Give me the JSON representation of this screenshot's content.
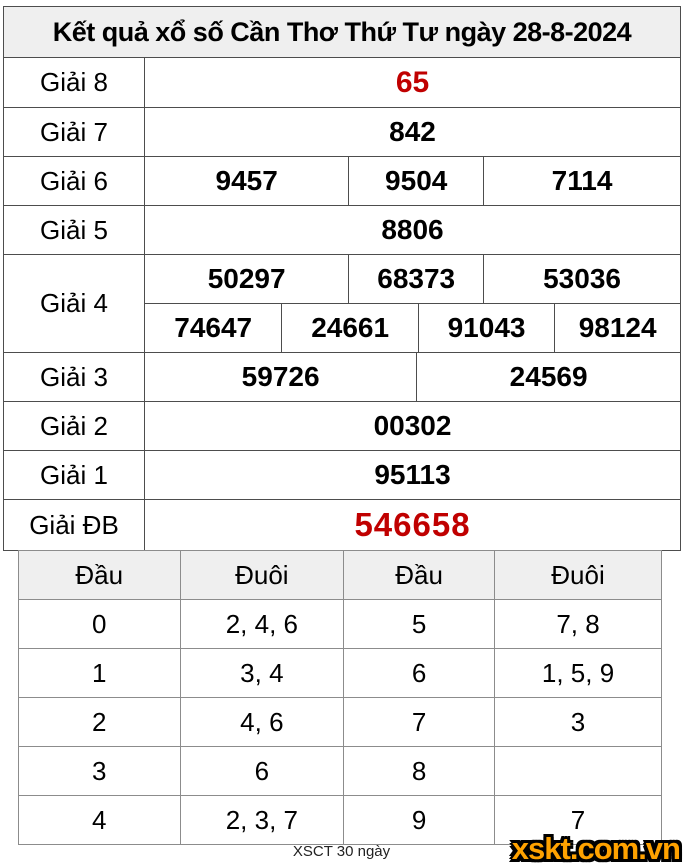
{
  "title": "Kết quả xổ số Cần Thơ Thứ Tư ngày 28-8-2024",
  "colors": {
    "accent_red": "#c00000",
    "logo_orange": "#ffa200",
    "header_bg": "#efefef"
  },
  "prize_table": {
    "rows": [
      {
        "label": "Giải 8",
        "values": [
          "65"
        ]
      },
      {
        "label": "Giải 7",
        "values": [
          "842"
        ]
      },
      {
        "label": "Giải 6",
        "values": [
          "9457",
          "9504",
          "7114"
        ]
      },
      {
        "label": "Giải 5",
        "values": [
          "8806"
        ]
      },
      {
        "label": "Giải 4",
        "line1": [
          "50297",
          "68373",
          "53036"
        ],
        "line2": [
          "74647",
          "24661",
          "91043",
          "98124"
        ]
      },
      {
        "label": "Giải 3",
        "values": [
          "59726",
          "24569"
        ]
      },
      {
        "label": "Giải 2",
        "values": [
          "00302"
        ]
      },
      {
        "label": "Giải 1",
        "values": [
          "95113"
        ]
      },
      {
        "label": "Giải ĐB",
        "values": [
          "546658"
        ]
      }
    ]
  },
  "head_tail_table": {
    "headers": [
      "Đầu",
      "Đuôi",
      "Đầu",
      "Đuôi"
    ],
    "rows": [
      [
        "0",
        "2, 4, 6",
        "5",
        "7, 8"
      ],
      [
        "1",
        "3, 4",
        "6",
        "1, 5, 9"
      ],
      [
        "2",
        "4, 6",
        "7",
        "3"
      ],
      [
        "3",
        "6",
        "8",
        ""
      ],
      [
        "4",
        "2, 3, 7",
        "9",
        "7"
      ]
    ]
  },
  "footer": {
    "caption": "XSCT 30 ngày",
    "logo": "xskt.com.vn"
  }
}
